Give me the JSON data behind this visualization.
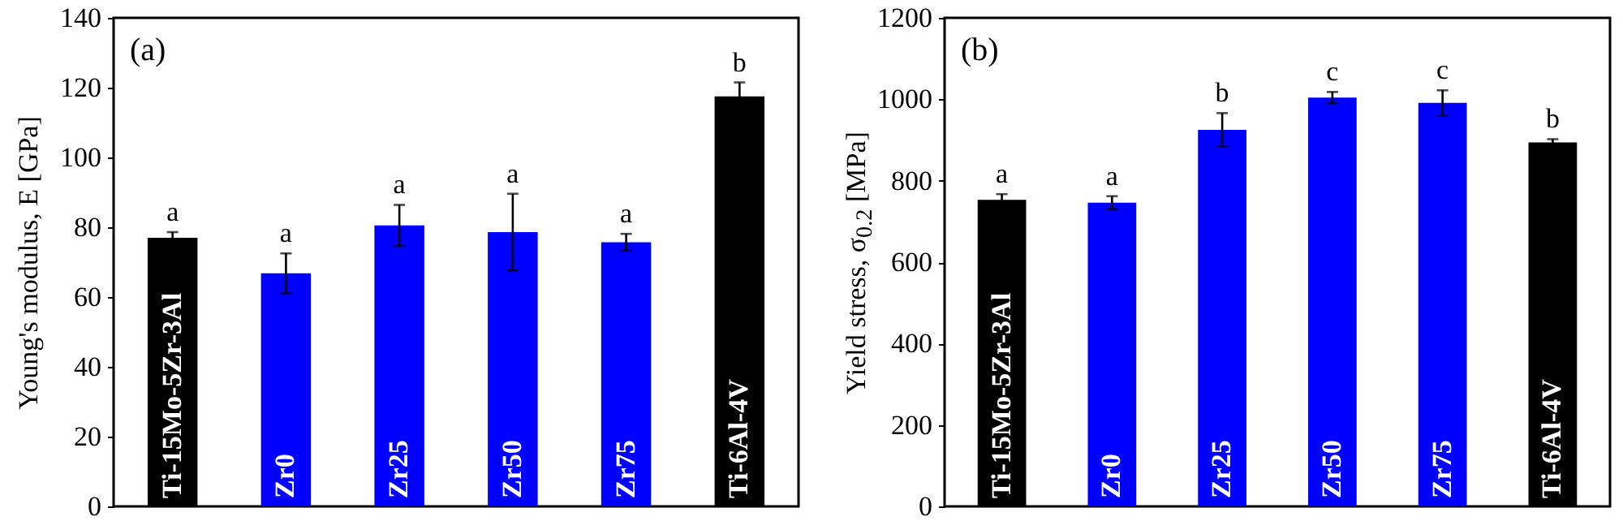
{
  "chart_data": [
    {
      "type": "bar",
      "title": "(a)",
      "ylabel": "Young's modulus, E [GPa]",
      "categories": [
        "Ti-15Mo-5Zr-3Al",
        "Zr0",
        "Zr25",
        "Zr50",
        "Zr75",
        "Ti-6Al-4V"
      ],
      "values": [
        77.0,
        66.8,
        80.5,
        78.6,
        75.7,
        117.5
      ],
      "errors": [
        1.6,
        5.7,
        5.9,
        11,
        2.4,
        4
      ],
      "colors": [
        "#000000",
        "#0000ff",
        "#0000ff",
        "#0000ff",
        "#0000ff",
        "#000000"
      ],
      "ylim": [
        0,
        140
      ],
      "yticks": [
        0,
        20,
        40,
        60,
        80,
        100,
        120,
        140
      ],
      "annotations": [
        {
          "text": "a",
          "x": "Ti-15Mo-5Zr-3Al",
          "y": 78.6
        },
        {
          "text": "a",
          "x": "Zr0",
          "y": 72.5
        },
        {
          "text": "a",
          "x": "Zr25",
          "y": 86.4
        },
        {
          "text": "a",
          "x": "Zr50",
          "y": 89.6
        },
        {
          "text": "a",
          "x": "Zr75",
          "y": 78.1
        },
        {
          "text": "b",
          "x": "Ti-6Al-4V",
          "y": 121.5
        }
      ]
    },
    {
      "type": "bar",
      "title": "(b)",
      "ylabel": "Yield stress, σ$_{0.2}$ [MPa]",
      "categories": [
        "Ti-15Mo-5Zr-3Al",
        "Zr0",
        "Zr25",
        "Zr50",
        "Zr75",
        "Ti-6Al-4V"
      ],
      "values": [
        753,
        746,
        925,
        1004,
        991,
        894
      ],
      "errors": [
        14,
        16,
        41,
        14,
        31,
        8
      ],
      "colors": [
        "#000000",
        "#0000ff",
        "#0000ff",
        "#0000ff",
        "#0000ff",
        "#000000"
      ],
      "ylim": [
        0,
        1200
      ],
      "yticks": [
        0,
        200,
        400,
        600,
        800,
        1000,
        1200
      ],
      "annotations": [
        {
          "text": "a",
          "x": "Ti-15Mo-5Zr-3Al",
          "y": 767
        },
        {
          "text": "a",
          "x": "Zr0",
          "y": 762
        },
        {
          "text": "b",
          "x": "Zr25",
          "y": 966
        },
        {
          "text": "c",
          "x": "Zr50",
          "y": 1018
        },
        {
          "text": "c",
          "x": "Zr75",
          "y": 1022
        },
        {
          "text": "b",
          "x": "Ti-6Al-4V",
          "y": 902
        }
      ]
    }
  ]
}
